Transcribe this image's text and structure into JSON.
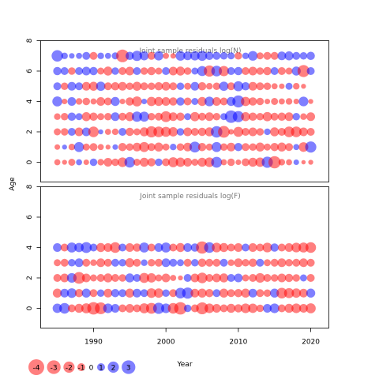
{
  "chart_data": {
    "type": "scatter",
    "subtype": "bubble-residual-plot",
    "x_label": "Year",
    "y_label": "Age",
    "x_ticks": [
      1990,
      2000,
      2010,
      2020
    ],
    "x_range": [
      1982.7,
      2022.5
    ],
    "colors": {
      "negative": "#ff0000",
      "positive": "#0000ff",
      "opacity": 0.5
    },
    "legend": {
      "placement": "bottom-left",
      "values": [
        -4,
        -3,
        -2,
        -1,
        0,
        1,
        2,
        3
      ],
      "labels": [
        "-4",
        "-3",
        "-2",
        "-1",
        "0",
        "1",
        "2",
        "3"
      ]
    },
    "panels": [
      {
        "title": "Joint sample residuals log(N)",
        "y_ticks": [
          0,
          2,
          4,
          6,
          8
        ],
        "y_tick_labels": [
          "0",
          "2",
          "4",
          "6",
          "8"
        ],
        "y_range": [
          -1.3,
          8.0
        ],
        "years": [
          1985,
          1986,
          1987,
          1988,
          1989,
          1990,
          1991,
          1992,
          1993,
          1994,
          1995,
          1996,
          1997,
          1998,
          1999,
          2000,
          2001,
          2002,
          2003,
          2004,
          2005,
          2006,
          2007,
          2008,
          2009,
          2010,
          2011,
          2012,
          2013,
          2014,
          2015,
          2016,
          2017,
          2018,
          2019,
          2020
        ],
        "ages": [
          0,
          1,
          2,
          3,
          4,
          5,
          6,
          7
        ],
        "residuals": [
          [
            -0.6,
            -0.4,
            -0.8,
            0.6,
            -0.5,
            0.9,
            -0.7,
            -1.2,
            -0.9,
            -1.5,
            1.8,
            -0.8,
            -1.3,
            -1.1,
            0.9,
            -1.0,
            -1.6,
            -1.4,
            -1.2,
            -0.8,
            -1.3,
            -1.5,
            1.9,
            -0.6,
            -0.9,
            -0.5,
            -1.0,
            -1.3,
            -1.4,
            2.0,
            -2.4,
            -0.7,
            -0.6,
            0.5,
            -0.3,
            -0.4
          ],
          [
            -0.5,
            0.4,
            -0.7,
            1.6,
            -0.8,
            -1.0,
            -0.6,
            -0.4,
            0.5,
            -1.1,
            -0.9,
            -1.2,
            -1.6,
            -1.0,
            -1.3,
            -0.8,
            0.7,
            -0.9,
            -1.2,
            1.9,
            -1.1,
            -0.8,
            1.6,
            -0.9,
            -1.2,
            1.1,
            -1.0,
            -0.9,
            -1.3,
            -0.8,
            -1.1,
            -1.3,
            -1.0,
            0.6,
            -1.5,
            2.0
          ],
          [
            -0.8,
            -0.9,
            1.0,
            -1.2,
            1.2,
            -1.8,
            0.4,
            -0.6,
            -0.7,
            1.0,
            -1.1,
            -0.8,
            -1.3,
            -2.0,
            -1.8,
            -1.6,
            -1.4,
            0.9,
            -1.2,
            -1.0,
            -1.1,
            -1.3,
            2.1,
            -2.2,
            -0.5,
            -1.6,
            -1.0,
            -1.2,
            -0.9,
            0.7,
            -1.3,
            -1.0,
            -1.8,
            -1.8,
            -1.2,
            -1.0
          ],
          [
            -0.7,
            -0.9,
            1.1,
            0.8,
            -1.3,
            -1.1,
            -0.8,
            -0.9,
            1.2,
            -1.0,
            -1.3,
            1.7,
            1.6,
            -0.9,
            -1.0,
            -1.9,
            -1.2,
            -1.1,
            0.8,
            -1.4,
            -1.0,
            -1.2,
            -0.9,
            0.8,
            2.5,
            2.0,
            -1.3,
            -1.1,
            -0.9,
            -1.4,
            -1.0,
            -1.1,
            -1.2,
            0.9,
            -0.7,
            -1.2
          ],
          [
            1.6,
            -0.5,
            1.2,
            -0.7,
            -0.9,
            -0.6,
            -1.2,
            -1.0,
            1.3,
            -0.5,
            -1.1,
            -1.6,
            0.5,
            -1.4,
            -1.3,
            -1.2,
            -1.1,
            1.1,
            -1.0,
            0.8,
            -1.3,
            1.5,
            -1.2,
            -1.0,
            1.3,
            2.3,
            -1.4,
            -1.1,
            -0.9,
            -0.5,
            -0.8,
            -0.6,
            -0.7,
            -0.5,
            1.5,
            -0.4
          ],
          [
            1.0,
            -0.9,
            1.2,
            1.0,
            -1.2,
            -1.3,
            1.4,
            -1.0,
            -1.1,
            -1.2,
            -0.9,
            -1.3,
            -1.0,
            -0.9,
            -1.1,
            -1.2,
            -1.0,
            0.9,
            -0.8,
            1.2,
            -1.1,
            -0.7,
            -0.9,
            1.4,
            -1.0,
            1.6,
            1.1,
            -1.2,
            -1.0,
            -0.9,
            -0.6,
            -0.5,
            0.8,
            -0.7,
            -0.4,
            0.0
          ],
          [
            1.1,
            1.0,
            -0.9,
            1.0,
            1.2,
            1.1,
            -0.8,
            -1.3,
            0.9,
            -1.0,
            -1.2,
            1.0,
            -0.9,
            -1.1,
            -0.8,
            1.0,
            -1.2,
            -1.3,
            -0.9,
            0.8,
            1.6,
            -2.0,
            1.8,
            -1.7,
            1.0,
            1.1,
            -1.0,
            -1.2,
            -0.9,
            -1.1,
            1.0,
            -1.0,
            -0.8,
            1.3,
            -2.3,
            1.0
          ],
          [
            2.1,
            0.7,
            0.5,
            0.6,
            1.0,
            -1.0,
            0.7,
            0.6,
            0.8,
            -2.6,
            1.1,
            1.7,
            1.3,
            -1.0,
            1.4,
            -0.6,
            -0.5,
            1.5,
            1.2,
            1.4,
            1.6,
            1.1,
            1.0,
            0.9,
            0.8,
            -0.9,
            0.7,
            1.5,
            -0.8,
            -1.0,
            -1.0,
            1.2,
            1.3,
            1.0,
            0.9,
            1.1
          ]
        ]
      },
      {
        "title": "Joint sample residuals log(F)",
        "y_ticks": [
          0,
          2,
          4,
          6,
          8
        ],
        "y_tick_labels": [
          "0",
          "2",
          "4",
          "6",
          "8"
        ],
        "y_range": [
          -1.3,
          8.0
        ],
        "years": [
          1985,
          1986,
          1987,
          1988,
          1989,
          1990,
          1991,
          1992,
          1993,
          1994,
          1995,
          1996,
          1997,
          1998,
          1999,
          2000,
          2001,
          2002,
          2003,
          2004,
          2005,
          2006,
          2007,
          2008,
          2009,
          2010,
          2011,
          2012,
          2013,
          2014,
          2015,
          2016,
          2017,
          2018,
          2019,
          2020
        ],
        "ages": [
          0,
          1,
          2,
          3,
          4
        ],
        "residuals": [
          [
            1.4,
            1.8,
            -1.0,
            -1.3,
            -1.6,
            -2.5,
            -2.2,
            1.5,
            1.2,
            -1.0,
            -1.2,
            -1.0,
            -1.6,
            -1.9,
            2.0,
            1.5,
            -1.8,
            -2.5,
            0.9,
            -1.0,
            -2.3,
            -1.5,
            -1.2,
            -1.0,
            -1.3,
            -1.1,
            -1.5,
            -1.4,
            -0.9,
            1.2,
            1.5,
            -1.0,
            -1.3,
            -1.5,
            -1.2,
            -1.6
          ],
          [
            -1.3,
            1.2,
            1.5,
            -1.1,
            1.3,
            -1.0,
            0.9,
            -1.2,
            1.1,
            1.0,
            -1.3,
            1.2,
            1.0,
            -1.5,
            -1.4,
            0.9,
            -1.0,
            1.8,
            2.0,
            -1.2,
            -1.3,
            -1.1,
            1.0,
            -1.3,
            -1.0,
            -1.1,
            -1.3,
            1.2,
            -1.0,
            -0.9,
            1.3,
            -1.8,
            -1.6,
            -1.4,
            -1.2,
            1.3
          ],
          [
            -1.0,
            -1.2,
            1.5,
            -2.2,
            -1.2,
            -0.8,
            -1.0,
            -1.3,
            -1.0,
            -0.9,
            1.3,
            1.0,
            -1.6,
            -1.4,
            -0.8,
            -1.2,
            -0.6,
            -0.4,
            1.0,
            -1.2,
            -1.8,
            -1.0,
            -1.2,
            -1.3,
            1.0,
            1.2,
            -0.8,
            -1.0,
            -1.5,
            -1.0,
            -0.9,
            -1.2,
            -1.1,
            -0.9,
            0.8,
            -1.0
          ],
          [
            -0.8,
            -1.0,
            0.9,
            1.2,
            -1.0,
            -0.7,
            -1.2,
            -1.0,
            1.0,
            0.9,
            -1.3,
            -1.0,
            0.7,
            -0.9,
            -1.0,
            1.2,
            1.0,
            0.8,
            -1.0,
            0.9,
            -1.1,
            -1.0,
            -1.0,
            1.0,
            -0.7,
            -1.2,
            -0.9,
            -1.1,
            1.0,
            -0.8,
            -1.0,
            -1.2,
            -0.9,
            -1.0,
            -1.2,
            -1.0
          ],
          [
            1.2,
            -1.0,
            1.6,
            1.4,
            1.9,
            1.0,
            -1.3,
            -1.2,
            -1.8,
            1.0,
            -1.2,
            -1.1,
            1.6,
            -1.0,
            1.2,
            1.6,
            -1.0,
            -1.3,
            1.2,
            1.1,
            -2.4,
            1.8,
            -1.5,
            -1.3,
            -1.0,
            -1.2,
            1.0,
            -1.2,
            -1.0,
            -1.5,
            1.1,
            -1.0,
            -1.2,
            -1.5,
            -1.6,
            -1.8
          ]
        ]
      }
    ]
  }
}
